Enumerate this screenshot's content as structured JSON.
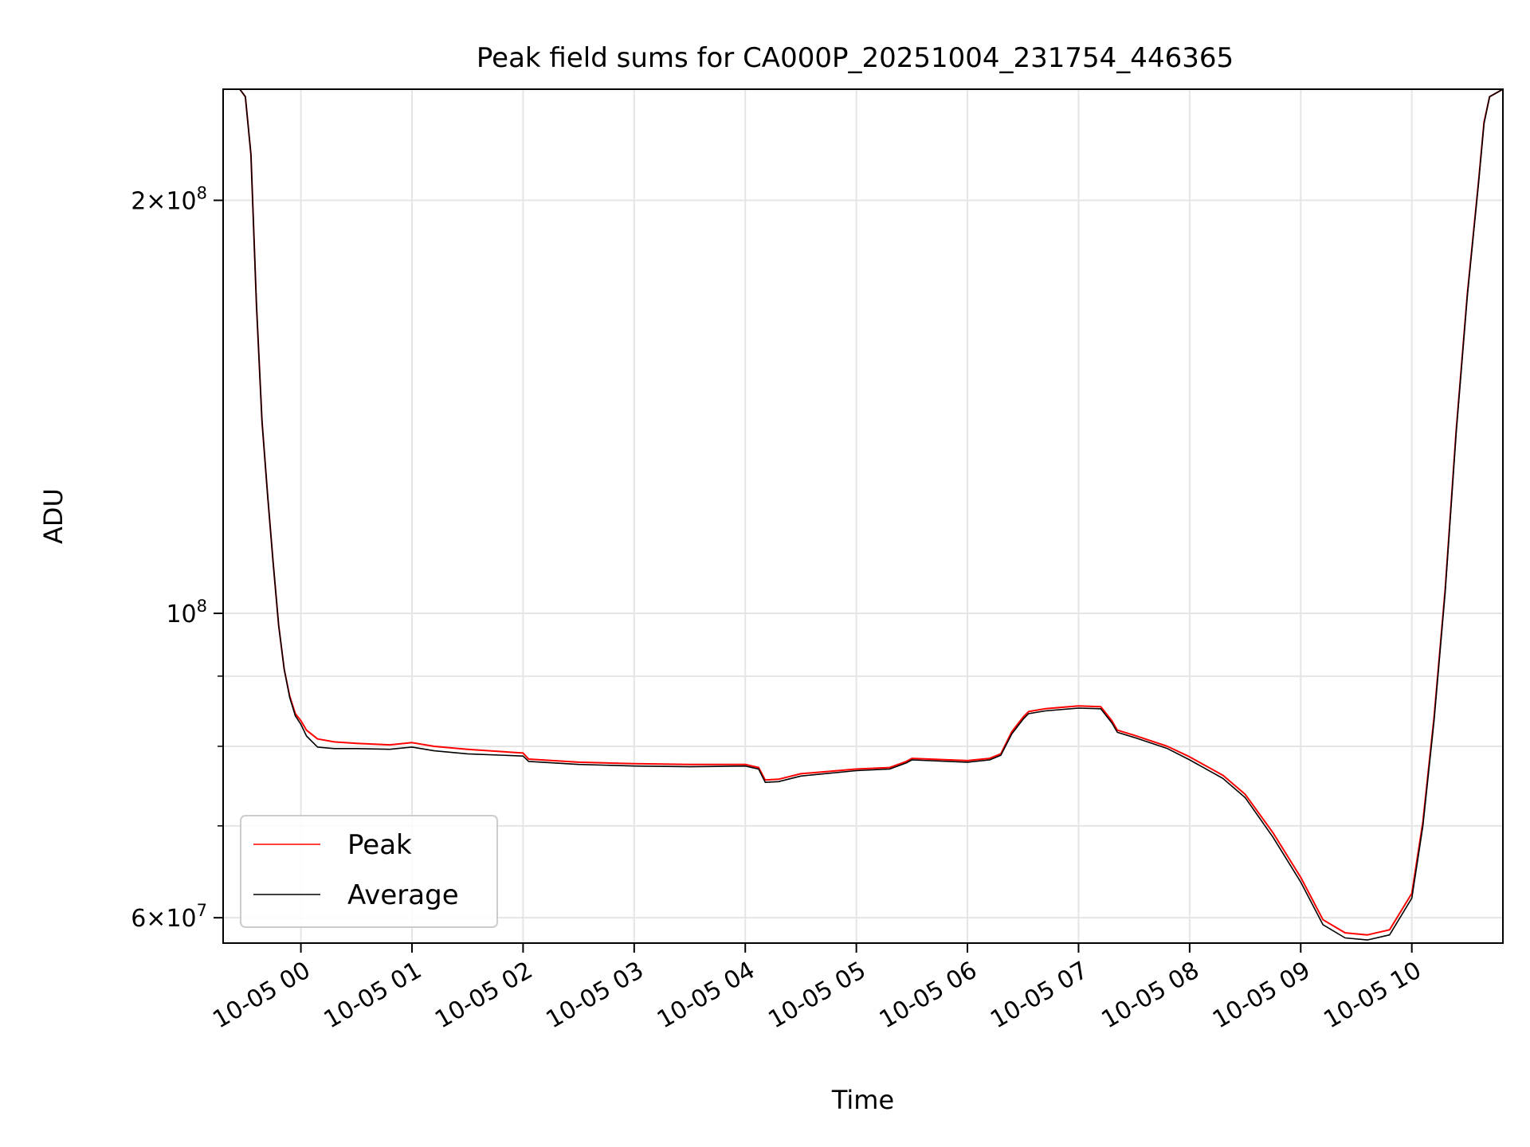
{
  "chart_data": {
    "type": "line",
    "title": "Peak field sums for CA000P_20251004_231754_446365",
    "xlabel": "Time",
    "ylabel": "ADU",
    "yscale": "log",
    "grid": true,
    "legend_position": "lower-left",
    "xlim_hours": [
      -0.7,
      10.82
    ],
    "ylim": [
      57500000,
      241000000
    ],
    "x_ticks": [
      {
        "hour": 0,
        "label": "10-05 00"
      },
      {
        "hour": 1,
        "label": "10-05 01"
      },
      {
        "hour": 2,
        "label": "10-05 02"
      },
      {
        "hour": 3,
        "label": "10-05 03"
      },
      {
        "hour": 4,
        "label": "10-05 04"
      },
      {
        "hour": 5,
        "label": "10-05 05"
      },
      {
        "hour": 6,
        "label": "10-05 06"
      },
      {
        "hour": 7,
        "label": "10-05 07"
      },
      {
        "hour": 8,
        "label": "10-05 08"
      },
      {
        "hour": 9,
        "label": "10-05 09"
      },
      {
        "hour": 10,
        "label": "10-05 10"
      }
    ],
    "y_major_ticks": [
      {
        "value": 200000000,
        "mantissa": "2",
        "times": "×",
        "base": "10",
        "exp": "8"
      },
      {
        "value": 100000000,
        "mantissa": "",
        "times": "",
        "base": "10",
        "exp": "8"
      },
      {
        "value": 60000000,
        "mantissa": "6",
        "times": "×",
        "base": "10",
        "exp": "7"
      }
    ],
    "y_minor_gridlines": [
      70000000,
      80000000,
      90000000
    ],
    "series": [
      {
        "name": "Peak",
        "color": "#ff0000",
        "x_hours": [
          -0.7,
          -0.55,
          -0.5,
          -0.45,
          -0.4,
          -0.35,
          -0.3,
          -0.25,
          -0.2,
          -0.15,
          -0.1,
          -0.05,
          0.0,
          0.05,
          0.15,
          0.3,
          0.5,
          0.8,
          1.0,
          1.2,
          1.5,
          2.0,
          2.05,
          2.5,
          3.0,
          3.5,
          4.0,
          4.12,
          4.18,
          4.3,
          4.5,
          5.0,
          5.3,
          5.45,
          5.5,
          6.0,
          6.2,
          6.3,
          6.4,
          6.5,
          6.55,
          6.7,
          7.0,
          7.2,
          7.3,
          7.35,
          7.5,
          7.8,
          8.0,
          8.3,
          8.5,
          8.75,
          9.0,
          9.2,
          9.4,
          9.6,
          9.8,
          10.0,
          10.1,
          10.2,
          10.3,
          10.4,
          10.5,
          10.6,
          10.65,
          10.7,
          10.82
        ],
        "y": [
          241000000,
          241000000,
          238000000,
          216000000,
          168000000,
          138000000,
          122000000,
          109000000,
          98000000,
          91000000,
          87000000,
          84500000,
          83500000,
          82200000,
          81000000,
          80600000,
          80400000,
          80200000,
          80500000,
          80000000,
          79600000,
          79100000,
          78300000,
          77900000,
          77700000,
          77600000,
          77600000,
          77200000,
          75600000,
          75700000,
          76400000,
          77000000,
          77200000,
          78000000,
          78400000,
          78100000,
          78400000,
          79000000,
          82000000,
          84000000,
          84800000,
          85200000,
          85600000,
          85500000,
          83500000,
          82200000,
          81500000,
          80000000,
          78600000,
          76200000,
          73800000,
          69200000,
          64200000,
          59800000,
          58500000,
          58300000,
          58800000,
          62500000,
          70500000,
          84000000,
          104000000,
          136000000,
          171000000,
          206000000,
          228000000,
          238000000,
          241000000
        ]
      },
      {
        "name": "Average",
        "color": "#000000",
        "x_hours": [
          -0.7,
          -0.55,
          -0.5,
          -0.45,
          -0.4,
          -0.35,
          -0.3,
          -0.25,
          -0.2,
          -0.15,
          -0.1,
          -0.05,
          0.0,
          0.05,
          0.15,
          0.3,
          0.5,
          0.8,
          1.0,
          1.2,
          1.5,
          2.0,
          2.05,
          2.5,
          3.0,
          3.5,
          4.0,
          4.12,
          4.18,
          4.3,
          4.5,
          5.0,
          5.3,
          5.45,
          5.5,
          6.0,
          6.2,
          6.3,
          6.4,
          6.5,
          6.55,
          6.7,
          7.0,
          7.2,
          7.3,
          7.35,
          7.5,
          7.8,
          8.0,
          8.3,
          8.5,
          8.75,
          9.0,
          9.2,
          9.4,
          9.6,
          9.8,
          10.0,
          10.1,
          10.2,
          10.3,
          10.4,
          10.5,
          10.6,
          10.65,
          10.7,
          10.82
        ],
        "y": [
          241000000,
          241000000,
          238000000,
          216000000,
          168000000,
          138000000,
          122000000,
          109000000,
          98000000,
          91000000,
          86800000,
          84200000,
          83000000,
          81400000,
          79900000,
          79700000,
          79700000,
          79600000,
          79900000,
          79400000,
          79000000,
          78700000,
          78000000,
          77600000,
          77400000,
          77300000,
          77400000,
          77000000,
          75300000,
          75400000,
          76100000,
          76800000,
          77000000,
          77800000,
          78200000,
          77900000,
          78200000,
          78800000,
          81700000,
          83700000,
          84500000,
          84900000,
          85300000,
          85200000,
          83200000,
          81900000,
          81200000,
          79700000,
          78200000,
          75800000,
          73400000,
          68700000,
          63700000,
          59300000,
          58000000,
          57800000,
          58300000,
          62000000,
          70000000,
          83500000,
          103500000,
          135500000,
          170500000,
          205500000,
          227500000,
          238000000,
          241000000
        ]
      }
    ]
  }
}
